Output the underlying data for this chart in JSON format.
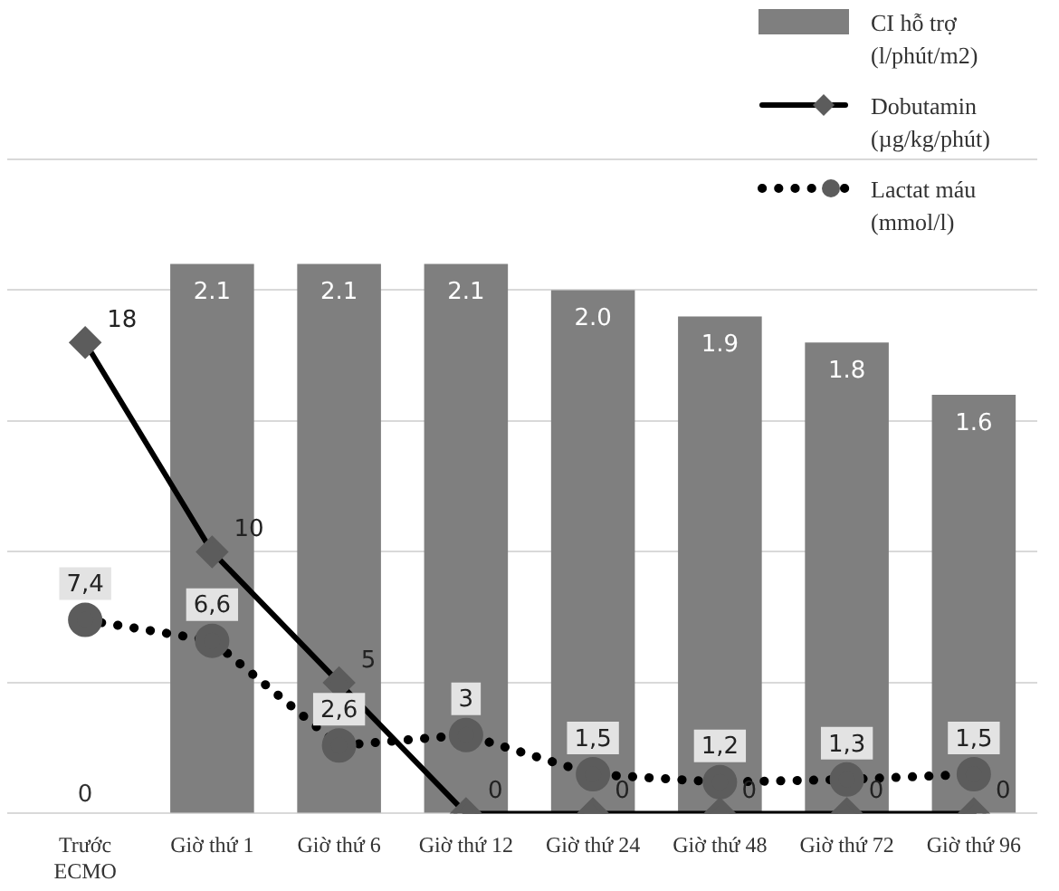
{
  "chart_data": {
    "type": "bar",
    "categories": [
      "Trước ECMO",
      "Giờ thứ 1",
      "Giờ thứ 6",
      "Giờ thứ 12",
      "Giờ thứ 24",
      "Giờ thứ 48",
      "Giờ thứ 72",
      "Giờ thứ 96"
    ],
    "series": [
      {
        "name": "CI hỗ trợ (l/phút/m2)",
        "color": "#7f7f7f",
        "values": [
          0,
          2.1,
          2.1,
          2.1,
          2.0,
          1.9,
          1.8,
          1.6
        ],
        "value_labels": [
          "0",
          "2.1",
          "2.1",
          "2.1",
          "2.0",
          "1.9",
          "1.8",
          "1.6"
        ]
      },
      {
        "name": "Dobutamin (µg/kg/phút)",
        "type": "line",
        "axis": "y2",
        "color": "#000000",
        "marker": "diamond",
        "line_style": "solid",
        "values": [
          18,
          10,
          5,
          0,
          0,
          0,
          0,
          0
        ],
        "value_labels": [
          "18",
          "10",
          "5",
          "0",
          "0",
          "0",
          "0",
          "0"
        ]
      },
      {
        "name": "Lactat máu (mmol/l)",
        "type": "line",
        "axis": "y2",
        "color": "#000000",
        "marker": "circle",
        "line_style": "dotted",
        "values": [
          7.4,
          6.6,
          2.6,
          3,
          1.5,
          1.2,
          1.3,
          1.5
        ],
        "value_labels": [
          "7,4",
          "6,6",
          "2,6",
          "3",
          "1,5",
          "1,2",
          "1,3",
          "1,5"
        ]
      }
    ],
    "ylim": [
      0,
      2.5
    ],
    "yticks": [
      0,
      0.5,
      1,
      1.5,
      2,
      2.5
    ],
    "y2lim": [
      0,
      25
    ],
    "grid": "y",
    "tick_labels": "x",
    "legend": "top right"
  }
}
